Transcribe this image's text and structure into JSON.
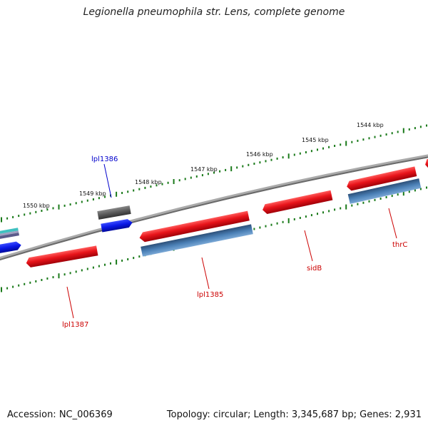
{
  "title": "Legionella pneumophila str. Lens, complete genome",
  "footer": {
    "accession": "Accession: NC_006369",
    "summary": "Topology: circular; Length: 3,345,687 bp; Genes: 2,931"
  },
  "scale_labels": [
    "1550 kbp",
    "1549 kbp",
    "1548 kbp",
    "1547 kbp",
    "1546 kbp",
    "1545 kbp",
    "1544 kbp"
  ],
  "gene_labels": [
    {
      "name": "lpl1386",
      "text": "lpl1386",
      "color": "#0000cc"
    },
    {
      "name": "lpl1387",
      "text": "lpl1387",
      "color": "#cc0000"
    },
    {
      "name": "lpl1385",
      "text": "lpl1385",
      "color": "#cc0000"
    },
    {
      "name": "sidb",
      "text": "sidB",
      "color": "#cc0000"
    },
    {
      "name": "thrc",
      "text": "thrC",
      "color": "#cc0000"
    }
  ],
  "colors": {
    "gene_red": "#e8141a",
    "gene_blue_steel": "#4a7fb5",
    "gene_blue": "#0a18e6",
    "gene_gray": "#666666",
    "gene_cyan": "#3fc0c0",
    "backbone": "#888888",
    "tick": "#1a7a1a"
  }
}
